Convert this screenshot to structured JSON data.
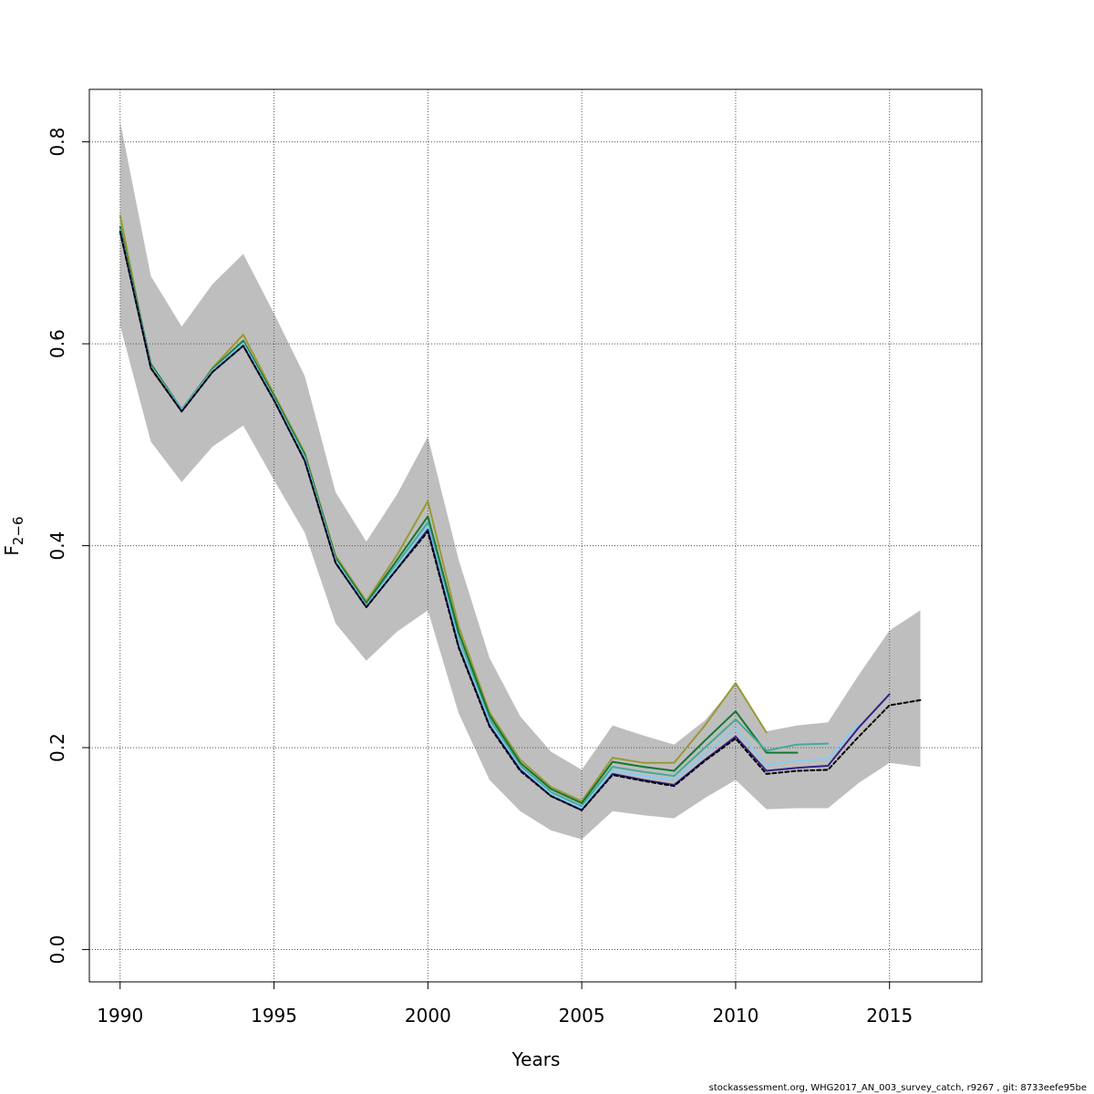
{
  "chart_data": {
    "type": "line",
    "title": "",
    "xlabel": "Years",
    "ylabel": "F",
    "ylabel_bar": "—",
    "ylabel_sub": "2−6",
    "xlim": [
      1989,
      2018
    ],
    "ylim": [
      -0.032,
      0.852
    ],
    "x_ticks": [
      1990,
      1995,
      2000,
      2005,
      2010,
      2015
    ],
    "y_ticks": [
      0.0,
      0.2,
      0.4,
      0.6,
      0.8
    ],
    "y_tick_labels": [
      "0.0",
      "0.2",
      "0.4",
      "0.6",
      "0.8"
    ],
    "grid": true,
    "confidence_band": {
      "x": [
        1990,
        1991,
        1992,
        1993,
        1994,
        1995,
        1996,
        1997,
        1998,
        1999,
        2000,
        2001,
        2002,
        2003,
        2004,
        2005,
        2006,
        2007,
        2008,
        2009,
        2010,
        2011,
        2012,
        2013,
        2014,
        2015,
        2016
      ],
      "lower": [
        0.618,
        0.503,
        0.463,
        0.498,
        0.519,
        0.465,
        0.413,
        0.323,
        0.286,
        0.315,
        0.336,
        0.234,
        0.168,
        0.137,
        0.118,
        0.109,
        0.137,
        0.133,
        0.13,
        0.15,
        0.168,
        0.139,
        0.14,
        0.14,
        0.165,
        0.185,
        0.181
      ],
      "upper": [
        0.82,
        0.667,
        0.617,
        0.659,
        0.689,
        0.63,
        0.568,
        0.453,
        0.404,
        0.451,
        0.508,
        0.386,
        0.289,
        0.231,
        0.196,
        0.178,
        0.222,
        0.212,
        0.203,
        0.227,
        0.263,
        0.216,
        0.222,
        0.225,
        0.272,
        0.316,
        0.336
      ]
    },
    "series": [
      {
        "color": "#999933",
        "width": 2,
        "dash": "",
        "x": [
          1990,
          1991,
          1992,
          1993,
          1994,
          1995,
          1996,
          1997,
          1998,
          1999,
          2000,
          2001,
          2002,
          2003,
          2004,
          2005,
          2006,
          2007,
          2008,
          2009,
          2010,
          2011
        ],
        "y": [
          0.727,
          0.575,
          0.533,
          0.576,
          0.609,
          0.55,
          0.492,
          0.39,
          0.345,
          0.391,
          0.444,
          0.32,
          0.235,
          0.188,
          0.161,
          0.147,
          0.19,
          0.185,
          0.185,
          0.222,
          0.264,
          0.215
        ]
      },
      {
        "color": "#117733",
        "width": 2,
        "dash": "",
        "x": [
          1990,
          1991,
          1992,
          1993,
          1994,
          1995,
          1996,
          1997,
          1998,
          1999,
          2000,
          2001,
          2002,
          2003,
          2004,
          2005,
          2006,
          2007,
          2008,
          2009,
          2010,
          2011,
          2012
        ],
        "y": [
          0.716,
          0.58,
          0.535,
          0.575,
          0.603,
          0.548,
          0.49,
          0.388,
          0.343,
          0.386,
          0.429,
          0.314,
          0.232,
          0.185,
          0.159,
          0.145,
          0.186,
          0.181,
          0.177,
          0.207,
          0.236,
          0.195,
          0.195
        ]
      },
      {
        "color": "#44AA99",
        "width": 2,
        "dash": "",
        "x": [
          1990,
          1991,
          1992,
          1993,
          1994,
          1995,
          1996,
          1997,
          1998,
          1999,
          2000,
          2001,
          2002,
          2003,
          2004,
          2005,
          2006,
          2007,
          2008,
          2009,
          2010,
          2011,
          2012,
          2013
        ],
        "y": [
          0.713,
          0.578,
          0.535,
          0.574,
          0.601,
          0.546,
          0.488,
          0.386,
          0.341,
          0.382,
          0.423,
          0.307,
          0.228,
          0.182,
          0.156,
          0.142,
          0.181,
          0.176,
          0.172,
          0.2,
          0.228,
          0.197,
          0.203,
          0.204
        ]
      },
      {
        "color": "#88CCEE",
        "width": 2,
        "dash": "",
        "x": [
          1990,
          1991,
          1992,
          1993,
          1994,
          1995,
          1996,
          1997,
          1998,
          1999,
          2000,
          2001,
          2002,
          2003,
          2004,
          2005,
          2006,
          2007,
          2008,
          2009,
          2010,
          2011,
          2012,
          2013,
          2014
        ],
        "y": [
          0.712,
          0.577,
          0.534,
          0.573,
          0.6,
          0.545,
          0.486,
          0.385,
          0.34,
          0.38,
          0.419,
          0.304,
          0.225,
          0.18,
          0.154,
          0.14,
          0.177,
          0.172,
          0.168,
          0.194,
          0.219,
          0.183,
          0.187,
          0.189,
          0.224
        ]
      },
      {
        "color": "#332288",
        "width": 2,
        "dash": "",
        "x": [
          1990,
          1991,
          1992,
          1993,
          1994,
          1995,
          1996,
          1997,
          1998,
          1999,
          2000,
          2001,
          2002,
          2003,
          2004,
          2005,
          2006,
          2007,
          2008,
          2009,
          2010,
          2011,
          2012,
          2013,
          2014,
          2015
        ],
        "y": [
          0.711,
          0.576,
          0.533,
          0.572,
          0.598,
          0.544,
          0.484,
          0.383,
          0.339,
          0.377,
          0.416,
          0.3,
          0.222,
          0.178,
          0.152,
          0.138,
          0.174,
          0.168,
          0.163,
          0.188,
          0.211,
          0.177,
          0.18,
          0.182,
          0.22,
          0.253
        ]
      },
      {
        "color": "#000000",
        "width": 2,
        "dash": "4,3",
        "x": [
          1990,
          1991,
          1992,
          1993,
          1994,
          1995,
          1996,
          1997,
          1998,
          1999,
          2000,
          2001,
          2002,
          2003,
          2004,
          2005,
          2006,
          2007,
          2008,
          2009,
          2010,
          2011,
          2012,
          2013,
          2014,
          2015,
          2016
        ],
        "y": [
          0.711,
          0.576,
          0.533,
          0.572,
          0.598,
          0.544,
          0.484,
          0.383,
          0.339,
          0.377,
          0.414,
          0.299,
          0.221,
          0.177,
          0.152,
          0.138,
          0.173,
          0.167,
          0.162,
          0.187,
          0.209,
          0.174,
          0.177,
          0.178,
          0.211,
          0.242,
          0.247
        ]
      }
    ]
  },
  "footer_text": "stockassessment.org, WHG2017_AN_003_survey_catch, r9267 , git: 8733eefe95be"
}
